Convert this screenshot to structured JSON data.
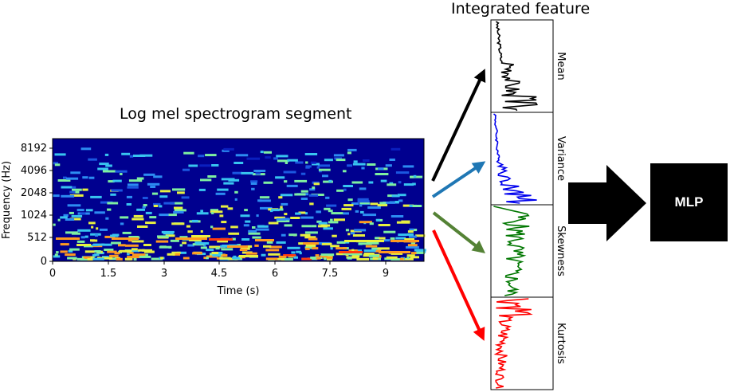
{
  "spectrogram": {
    "title": "Log mel spectrogram segment",
    "xlabel": "Time (s)",
    "ylabel": "Frequency (Hz)",
    "xticks": [
      "0",
      "1.5",
      "3",
      "4.5",
      "6",
      "7.5",
      "9"
    ],
    "yticks": [
      "0",
      "512",
      "1024",
      "2048",
      "4096",
      "8192"
    ]
  },
  "features": {
    "title": "Integrated feature",
    "panels": [
      {
        "label": "Mean",
        "color": "#000000"
      },
      {
        "label": "Variance",
        "color": "#0000ee"
      },
      {
        "label": "Skewness",
        "color": "#007700"
      },
      {
        "label": "Kurtosis",
        "color": "#ff0000"
      }
    ]
  },
  "arrows": [
    {
      "color": "#000000"
    },
    {
      "color": "#1f77b4"
    },
    {
      "color": "#548235"
    },
    {
      "color": "#ff0000"
    }
  ],
  "classifier": {
    "label": "MLP"
  }
}
